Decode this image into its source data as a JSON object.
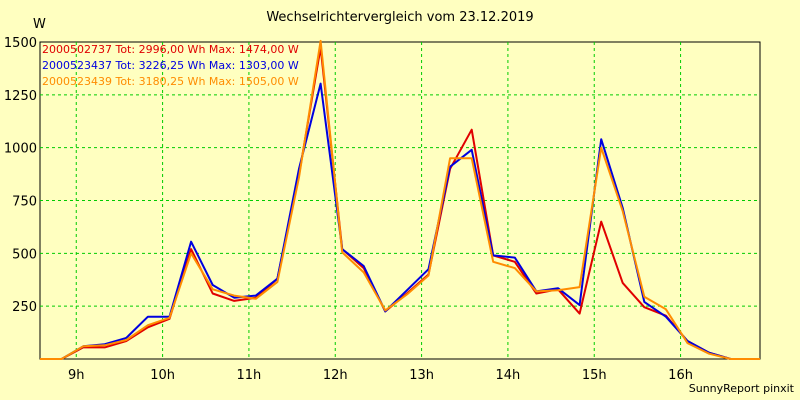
{
  "chart_data": {
    "type": "line",
    "title": "Wechselrichtervergleich vom 23.12.2019",
    "ylabel": "W",
    "xlabel": "",
    "ylim": [
      0,
      1500
    ],
    "xlim": [
      8.58,
      16.92
    ],
    "yticks": [
      250,
      500,
      750,
      1000,
      1250,
      1500
    ],
    "xticks": [
      9,
      10,
      11,
      12,
      13,
      14,
      15,
      16
    ],
    "xtick_labels": [
      "9h",
      "10h",
      "11h",
      "12h",
      "13h",
      "14h",
      "15h",
      "16h"
    ],
    "grid": true,
    "legend_position": "top-left",
    "footer": "SunnyReport pinxit",
    "x": [
      8.58,
      8.83,
      9.08,
      9.33,
      9.58,
      9.83,
      10.08,
      10.33,
      10.58,
      10.83,
      11.08,
      11.33,
      11.58,
      11.83,
      12.08,
      12.33,
      12.58,
      12.83,
      13.08,
      13.33,
      13.58,
      13.83,
      14.08,
      14.33,
      14.58,
      14.83,
      15.08,
      15.33,
      15.58,
      15.83,
      16.08,
      16.33,
      16.58,
      16.83,
      16.92
    ],
    "series": [
      {
        "id": "2000502737",
        "legend": "2000502737 Tot: 2996,00 Wh Max: 1474,00 W",
        "color": "#e00000",
        "values": [
          0,
          0,
          55,
          55,
          85,
          150,
          190,
          520,
          310,
          275,
          290,
          380,
          870,
          1474,
          520,
          430,
          225,
          310,
          400,
          900,
          1085,
          490,
          460,
          310,
          330,
          215,
          650,
          360,
          245,
          205,
          85,
          30,
          0,
          0,
          0
        ]
      },
      {
        "id": "2000523437",
        "legend": "2000523437 Tot: 3226,25 Wh Max: 1303,00 W",
        "color": "#0000e0",
        "values": [
          0,
          0,
          60,
          70,
          100,
          200,
          200,
          555,
          350,
          290,
          300,
          380,
          900,
          1303,
          520,
          440,
          225,
          325,
          425,
          910,
          990,
          490,
          480,
          320,
          335,
          255,
          1040,
          715,
          270,
          200,
          85,
          30,
          0,
          0,
          0
        ]
      },
      {
        "id": "2000523439",
        "legend": "2000523439 Tot: 3180,25 Wh Max: 1505,00 W",
        "color": "#ff8c00",
        "values": [
          0,
          0,
          60,
          65,
          90,
          160,
          195,
          500,
          330,
          300,
          285,
          365,
          860,
          1505,
          505,
          410,
          230,
          305,
          395,
          950,
          950,
          460,
          430,
          320,
          325,
          340,
          1000,
          700,
          295,
          235,
          75,
          25,
          0,
          0,
          0
        ]
      }
    ]
  }
}
